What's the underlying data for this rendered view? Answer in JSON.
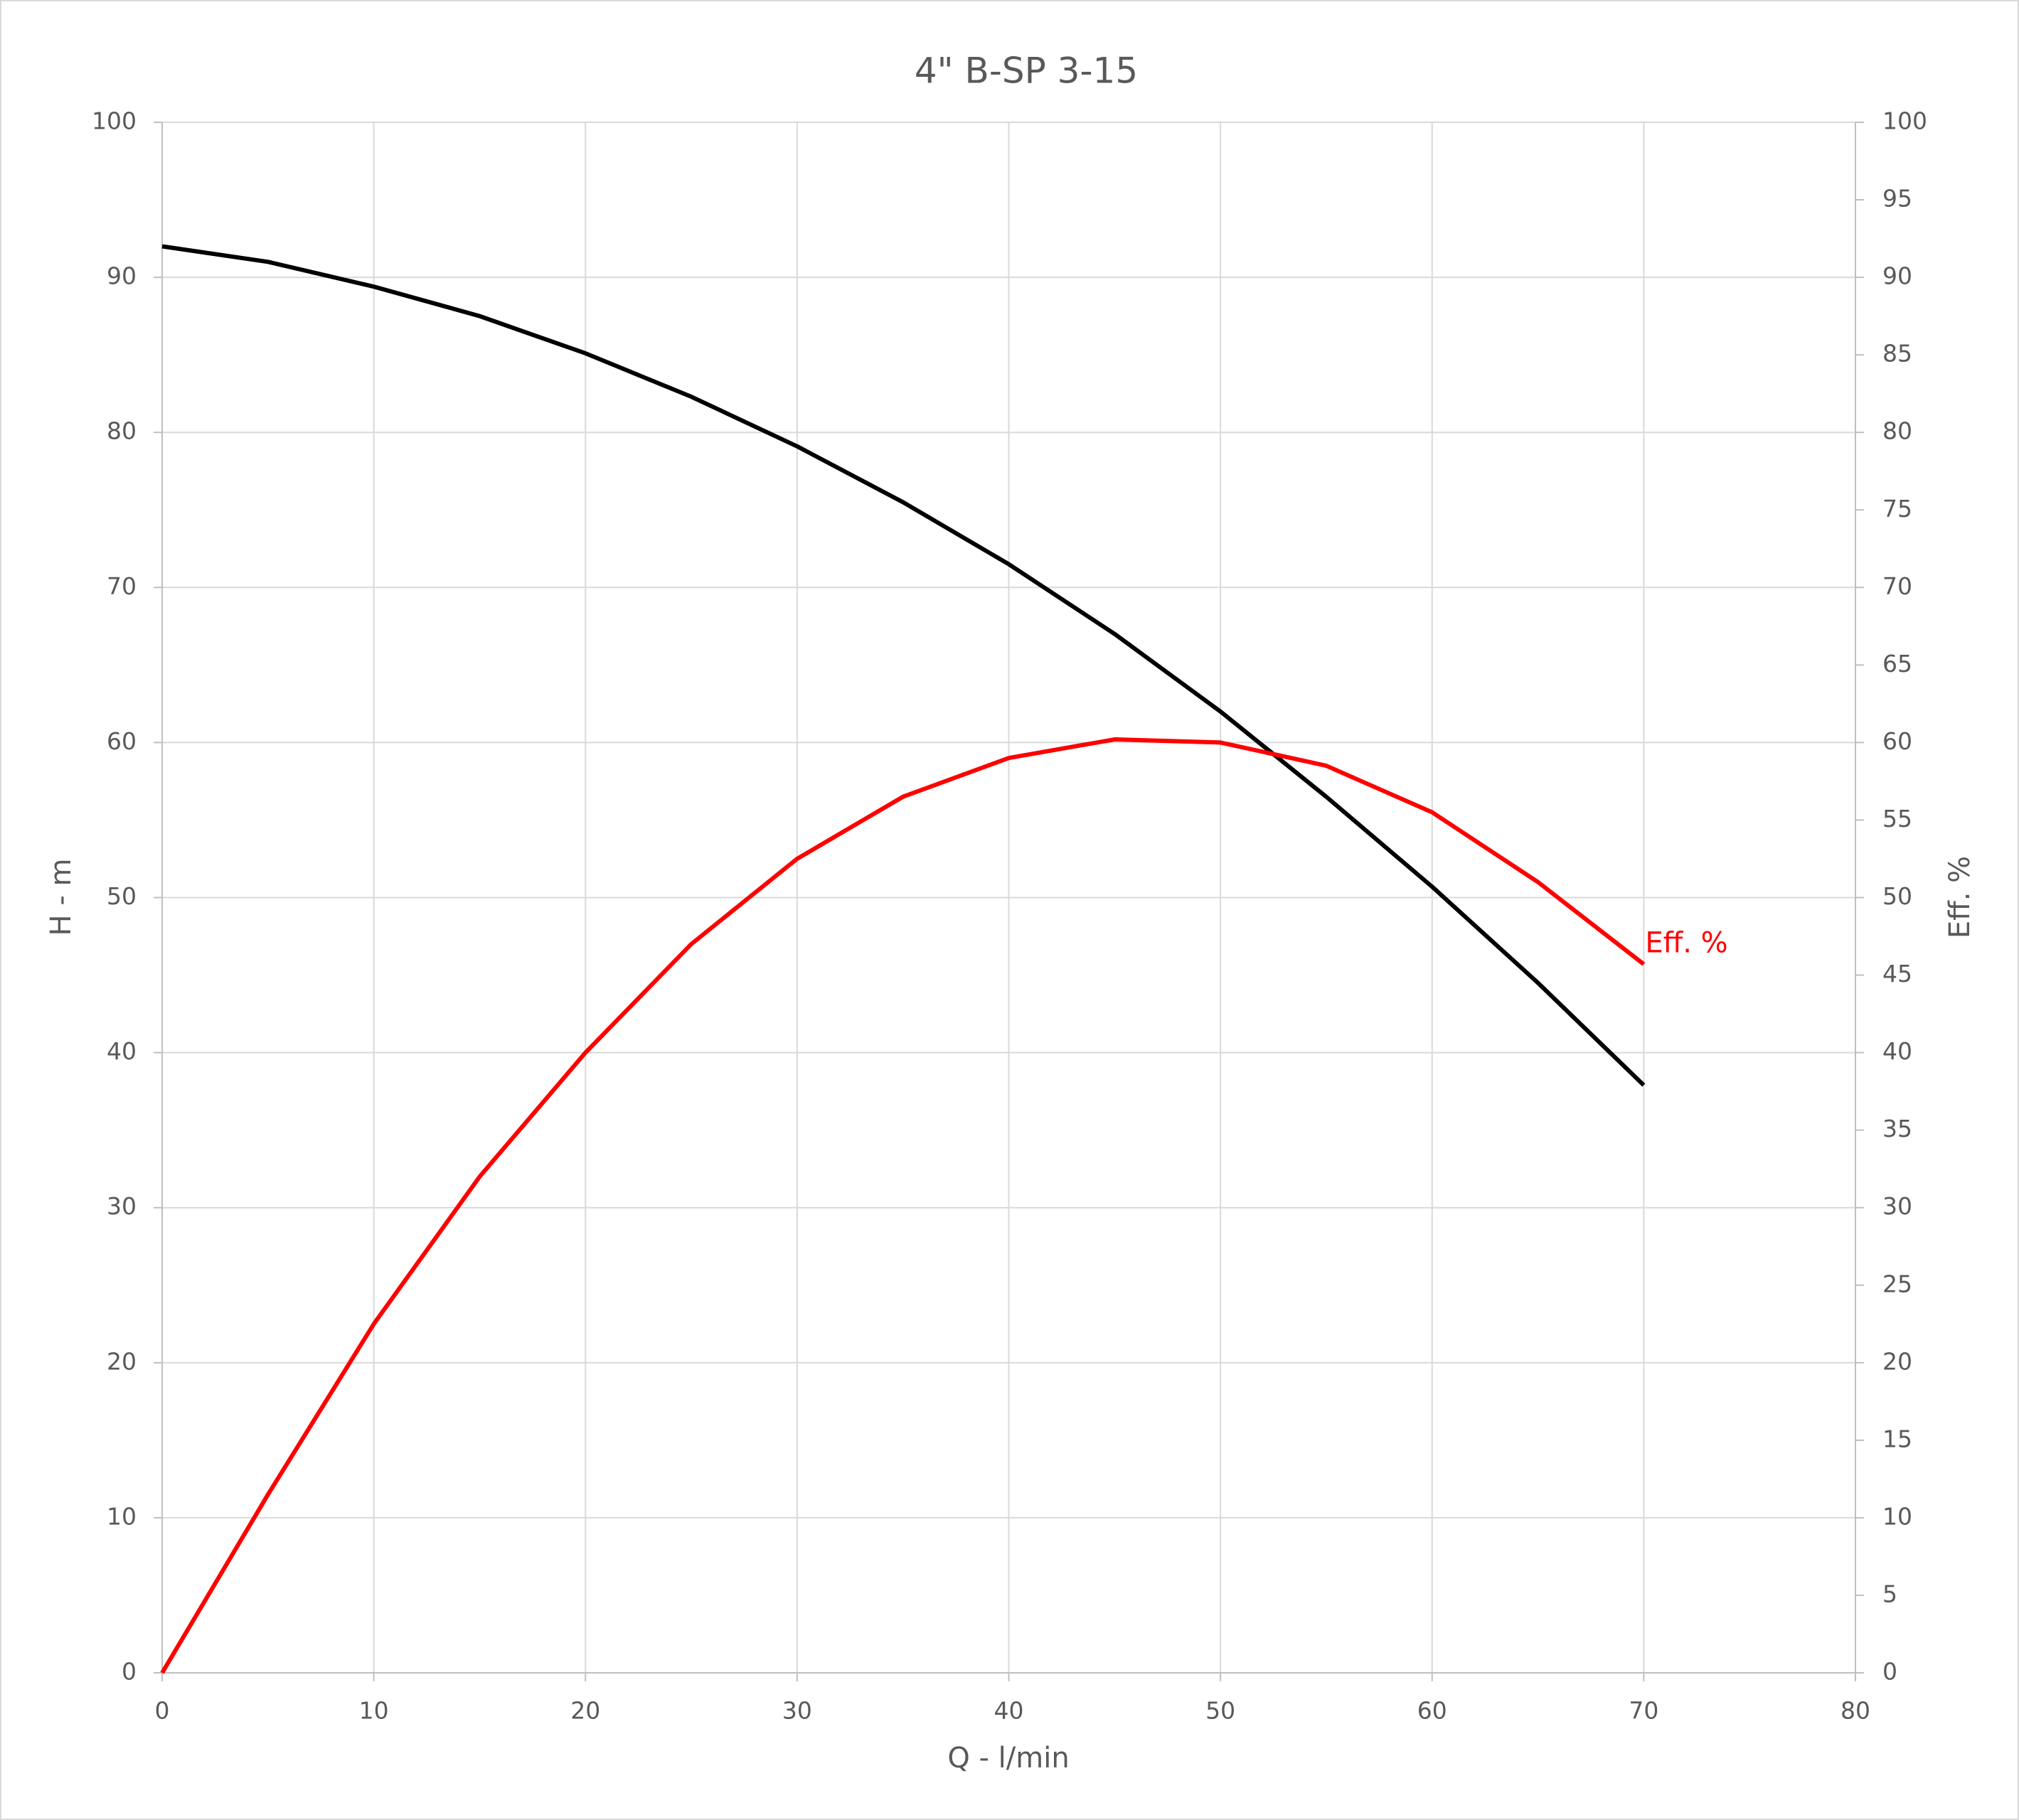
{
  "chart_data": {
    "type": "line",
    "title": "4\" B-SP 3-15",
    "x_label": "Q - l/min",
    "y_label": "H - m",
    "y2_label": "Eff. %",
    "x": [
      0,
      5,
      10,
      15,
      20,
      25,
      30,
      35,
      40,
      45,
      50,
      55,
      60,
      65,
      70
    ],
    "series": [
      {
        "color": "#000000",
        "values": [
          92,
          91,
          89.4,
          87.5,
          85.1,
          82.3,
          79.1,
          75.5,
          71.5,
          67,
          62,
          56.5,
          50.7,
          44.5,
          37.9
        ]
      },
      {
        "name": "Eff. %",
        "color": "#ff0000",
        "axis": "y2",
        "values": [
          0,
          11.5,
          22.5,
          32,
          40,
          47,
          52.5,
          56.5,
          59,
          60.2,
          60,
          58.5,
          55.5,
          51,
          45.7
        ]
      }
    ],
    "xlim": [
      0,
      80
    ],
    "xticks": [
      0,
      10,
      20,
      30,
      40,
      50,
      60,
      70,
      80
    ],
    "ylim": [
      0,
      100
    ],
    "yticks": [
      0,
      10,
      20,
      30,
      40,
      50,
      60,
      70,
      80,
      90,
      100
    ],
    "y2lim": [
      0,
      100
    ],
    "y2ticks": [
      0,
      5,
      10,
      15,
      20,
      25,
      30,
      35,
      40,
      45,
      50,
      55,
      60,
      65,
      70,
      75,
      80,
      85,
      90,
      95,
      100
    ],
    "grid": true
  }
}
